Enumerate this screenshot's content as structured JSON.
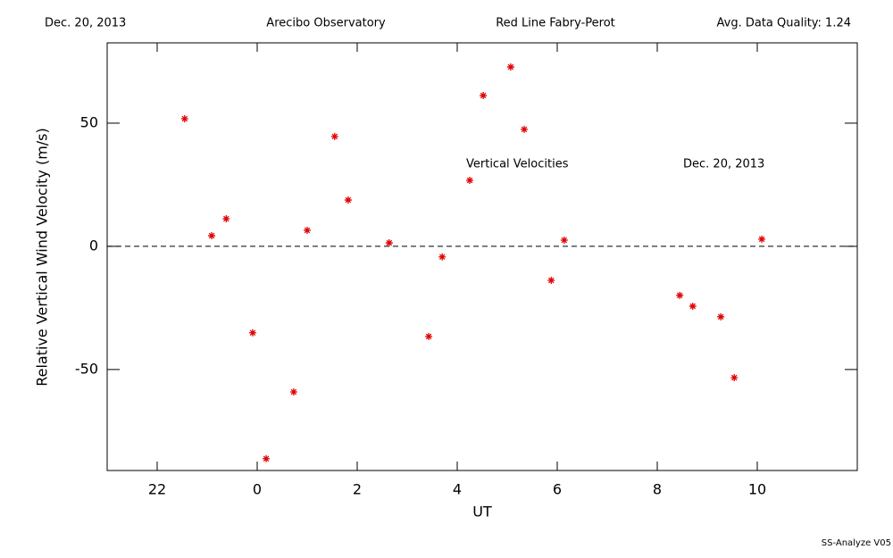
{
  "header": {
    "date": "Dec. 20, 2013",
    "site": "Arecibo Observatory",
    "instrument": "Red Line Fabry-Perot",
    "quality": "Avg. Data Quality: 1.24"
  },
  "footer": "SS-Analyze V05",
  "chart_data": {
    "type": "scatter",
    "xlabel": "UT",
    "ylabel": "Relative Vertical Wind Velocity (m/s)",
    "annotations": [
      "Vertical Velocities",
      "Dec. 20, 2013"
    ],
    "color": "#e00000",
    "marker": "asterisk",
    "hline": 0,
    "xlim": [
      21,
      36
    ],
    "ylim": [
      -91,
      82.6
    ],
    "xticks": [
      22,
      {
        "value": 24,
        "label": "0"
      },
      {
        "value": 26,
        "label": "2"
      },
      {
        "value": 28,
        "label": "4"
      },
      {
        "value": 30,
        "label": "6"
      },
      {
        "value": 32,
        "label": "8"
      },
      {
        "value": 34,
        "label": "10"
      }
    ],
    "yticks": [
      -50,
      0,
      50
    ],
    "x": [
      22.55,
      23.09,
      23.38,
      23.91,
      24.18,
      24.73,
      25.0,
      25.55,
      25.82,
      26.64,
      27.43,
      27.7,
      28.25,
      28.52,
      29.07,
      29.34,
      29.88,
      30.14,
      32.45,
      32.71,
      33.27,
      33.54,
      34.09
    ],
    "values": [
      51.8,
      4.3,
      11.2,
      -35.1,
      -86.2,
      -59.1,
      6.5,
      44.6,
      18.8,
      1.4,
      -36.6,
      -4.3,
      26.8,
      61.2,
      72.8,
      47.5,
      -13.8,
      2.5,
      -19.9,
      -24.3,
      -28.6,
      -53.3,
      2.9
    ]
  }
}
